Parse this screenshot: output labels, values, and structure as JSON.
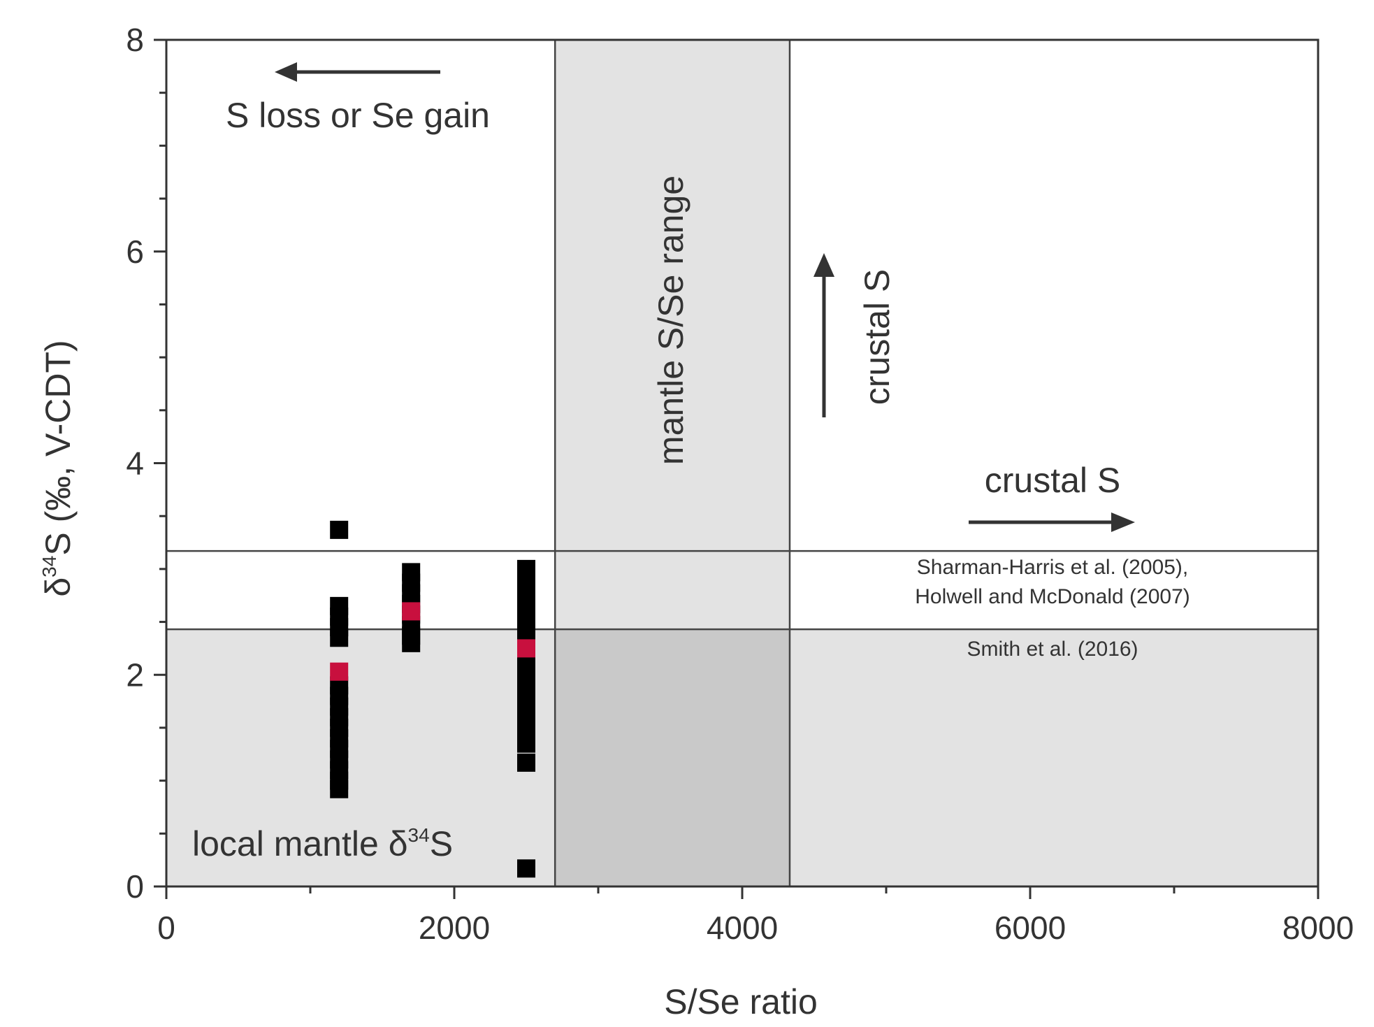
{
  "chart_data": {
    "type": "scatter",
    "xlabel": "S/Se ratio",
    "ylabel_parts": {
      "delta": "δ",
      "sup": "34",
      "rest": "S (‰, V-CDT)"
    },
    "xlim": [
      0,
      8000
    ],
    "ylim": [
      0,
      8
    ],
    "x_ticks": [
      0,
      2000,
      4000,
      6000,
      8000
    ],
    "x_minor_ticks": [
      1000,
      3000,
      5000,
      7000
    ],
    "y_ticks": [
      0,
      2,
      4,
      6,
      8
    ],
    "y_minor_ticks": [
      0.5,
      1,
      1.5,
      2.5,
      3,
      3.5,
      4.5,
      5,
      5.5,
      6.5,
      7,
      7.5
    ],
    "regions": [
      {
        "name": "mantle-ss-range",
        "x0": 2700,
        "x1": 4330,
        "y0": 0,
        "y1": 8,
        "color": "#e3e3e3"
      },
      {
        "name": "local-mantle-d34s",
        "x0": 0,
        "x1": 8000,
        "y0": 0,
        "y1": 2.43,
        "color": "#e3e3e3"
      },
      {
        "name": "overlap",
        "x0": 2700,
        "x1": 4330,
        "y0": 0,
        "y1": 2.43,
        "color": "#c9c9c9"
      }
    ],
    "v_lines": [
      2700,
      4330
    ],
    "h_lines": [
      3.17,
      2.43
    ],
    "series": [
      {
        "name": "samples",
        "color": "#000000",
        "points": [
          [
            1200,
            3.37
          ],
          [
            1200,
            2.65
          ],
          [
            1200,
            2.55
          ],
          [
            1200,
            2.45
          ],
          [
            1200,
            2.35
          ],
          [
            1200,
            1.9
          ],
          [
            1200,
            1.8
          ],
          [
            1200,
            1.7
          ],
          [
            1200,
            1.6
          ],
          [
            1200,
            1.5
          ],
          [
            1200,
            1.4
          ],
          [
            1200,
            1.3
          ],
          [
            1200,
            1.2
          ],
          [
            1200,
            1.1
          ],
          [
            1200,
            1.0
          ],
          [
            1200,
            0.92
          ],
          [
            1700,
            2.97
          ],
          [
            1700,
            2.87
          ],
          [
            1700,
            2.77
          ],
          [
            1700,
            2.67
          ],
          [
            1700,
            2.57
          ],
          [
            1700,
            2.47
          ],
          [
            1700,
            2.37
          ],
          [
            1700,
            2.3
          ],
          [
            2500,
            3.0
          ],
          [
            2500,
            2.9
          ],
          [
            2500,
            2.8
          ],
          [
            2500,
            2.7
          ],
          [
            2500,
            2.6
          ],
          [
            2500,
            2.5
          ],
          [
            2500,
            2.4
          ],
          [
            2500,
            2.3
          ],
          [
            2500,
            2.2
          ],
          [
            2500,
            2.1
          ],
          [
            2500,
            2.0
          ],
          [
            2500,
            1.9
          ],
          [
            2500,
            1.8
          ],
          [
            2500,
            1.7
          ],
          [
            2500,
            1.6
          ],
          [
            2500,
            1.5
          ],
          [
            2500,
            1.4
          ],
          [
            2500,
            1.35
          ],
          [
            2500,
            1.17
          ],
          [
            2500,
            0.17
          ]
        ]
      },
      {
        "name": "means",
        "color": "#c8103e",
        "points": [
          [
            1200,
            2.03
          ],
          [
            1700,
            2.6
          ],
          [
            2500,
            2.25
          ]
        ]
      }
    ],
    "annotations": {
      "s_loss": "S loss or Se gain",
      "mantle_range": "mantle S/Se range",
      "crustal_up": "crustal S",
      "crustal_right": "crustal S",
      "ref_line1": "Sharman-Harris et al. (2005),",
      "ref_line2": "Holwell and McDonald (2007)",
      "ref_smith": "Smith et al. (2016)",
      "local_mantle": "local mantle δ",
      "local_mantle_sup": "34",
      "local_mantle_end": "S"
    }
  }
}
